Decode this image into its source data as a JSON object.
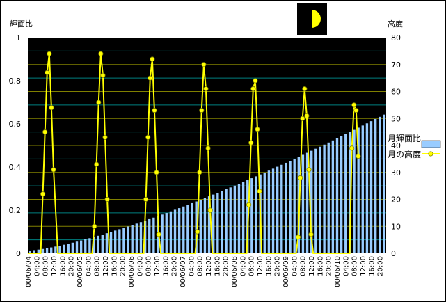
{
  "chart_data": {
    "type": "bar+line",
    "title": "",
    "ylabel_left": "輝面比",
    "ylabel_right": "高度",
    "ylim_left": [
      0,
      1
    ],
    "ylim_right": [
      0,
      80
    ],
    "yticks_left": [
      "0",
      "0.2",
      "0.4",
      "0.6",
      "0.8",
      "1"
    ],
    "yticks_right": [
      "0",
      "10",
      "20",
      "30",
      "40",
      "50",
      "60",
      "70",
      "80"
    ],
    "x_tick_labels": [
      "00/06/04",
      "04:00",
      "08:00",
      "12:00",
      "16:00",
      "20:00",
      "00/06/05",
      "04:00",
      "08:00",
      "12:00",
      "16:00",
      "20:00",
      "00/06/06",
      "04:00",
      "08:00",
      "12:00",
      "16:00",
      "20:00",
      "00/06/07",
      "04:00",
      "08:00",
      "12:00",
      "16:00",
      "20:00",
      "00/06/08",
      "04:00",
      "08:00",
      "12:00",
      "16:00",
      "20:00",
      "00/06/09",
      "04:00",
      "08:00",
      "12:00",
      "16:00",
      "20:00",
      "00/06/10",
      "04:00",
      "08:00",
      "12:00",
      "16:00",
      "20:00"
    ],
    "x_range_hours": [
      0,
      167
    ],
    "grid": true,
    "legend_position": "right",
    "series": [
      {
        "name": "月輝面比",
        "kind": "bar",
        "color": "#99ccff",
        "start_value": 0.013,
        "end_value": 0.643,
        "curve_exponent": 1.35,
        "bar_interval_hours": 2
      },
      {
        "name": "月の高度",
        "kind": "line",
        "color": "#ffff00",
        "marker_color": "#ffff00",
        "points": [
          [
            0,
            0
          ],
          [
            4,
            0
          ],
          [
            6,
            0
          ],
          [
            7,
            22
          ],
          [
            8,
            45
          ],
          [
            9,
            67
          ],
          [
            10,
            74
          ],
          [
            11,
            54
          ],
          [
            12,
            31
          ],
          [
            14,
            0
          ],
          [
            28,
            0
          ],
          [
            30,
            0
          ],
          [
            31,
            10
          ],
          [
            32,
            33
          ],
          [
            33,
            56
          ],
          [
            34,
            74
          ],
          [
            35,
            66
          ],
          [
            36,
            43
          ],
          [
            37,
            20
          ],
          [
            38,
            0
          ],
          [
            52,
            0
          ],
          [
            54,
            0
          ],
          [
            55,
            20
          ],
          [
            56,
            43
          ],
          [
            57,
            65
          ],
          [
            58,
            72
          ],
          [
            59,
            53
          ],
          [
            60,
            30
          ],
          [
            61,
            7
          ],
          [
            62,
            0
          ],
          [
            76,
            0
          ],
          [
            78,
            0
          ],
          [
            79,
            8
          ],
          [
            80,
            30
          ],
          [
            81,
            53
          ],
          [
            82,
            70
          ],
          [
            83,
            61
          ],
          [
            84,
            39
          ],
          [
            85,
            16
          ],
          [
            86,
            0
          ],
          [
            100,
            0
          ],
          [
            102,
            0
          ],
          [
            103,
            18
          ],
          [
            104,
            41
          ],
          [
            105,
            61
          ],
          [
            106,
            64
          ],
          [
            107,
            46
          ],
          [
            108,
            23
          ],
          [
            109,
            0
          ],
          [
            123,
            0
          ],
          [
            125,
            0
          ],
          [
            126,
            6
          ],
          [
            127,
            28
          ],
          [
            128,
            50
          ],
          [
            129,
            61
          ],
          [
            130,
            51
          ],
          [
            131,
            31
          ],
          [
            132,
            7
          ],
          [
            133,
            0
          ],
          [
            147,
            0
          ],
          [
            149,
            0
          ],
          [
            150,
            0
          ],
          [
            151,
            39
          ],
          [
            152,
            55
          ],
          [
            153,
            53
          ],
          [
            154,
            36
          ]
        ]
      }
    ],
    "moon_phase_icon": "half-moon-icon"
  },
  "colors": {
    "plot_background": "#000000",
    "grid_line": "#808000",
    "grid_line_mid": "#008080",
    "bar": "#99ccff",
    "altitude_line": "#ffff00",
    "moon": "#ffff00"
  }
}
